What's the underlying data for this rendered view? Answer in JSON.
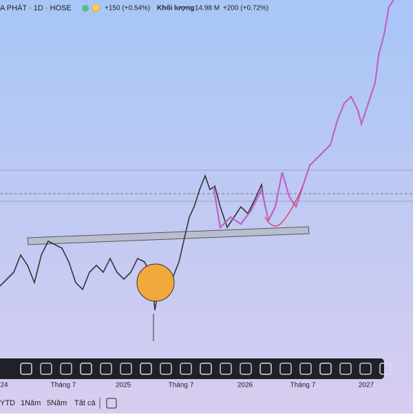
{
  "header": {
    "symbol": "A PHÁT · 1D · HOSE",
    "badge": "D",
    "change": "+150 (+0.54%)",
    "volume_label": "Khối lượng",
    "volume": "14.98 M",
    "volume_change": "+200 (+0.72%)"
  },
  "time_axis": [
    "24",
    "Tháng 7",
    "2025",
    "Tháng 7",
    "2026",
    "Tháng 7",
    "2027"
  ],
  "ranges": [
    "YTD",
    "1Năm",
    "5Năm",
    "Tất cả"
  ]
}
